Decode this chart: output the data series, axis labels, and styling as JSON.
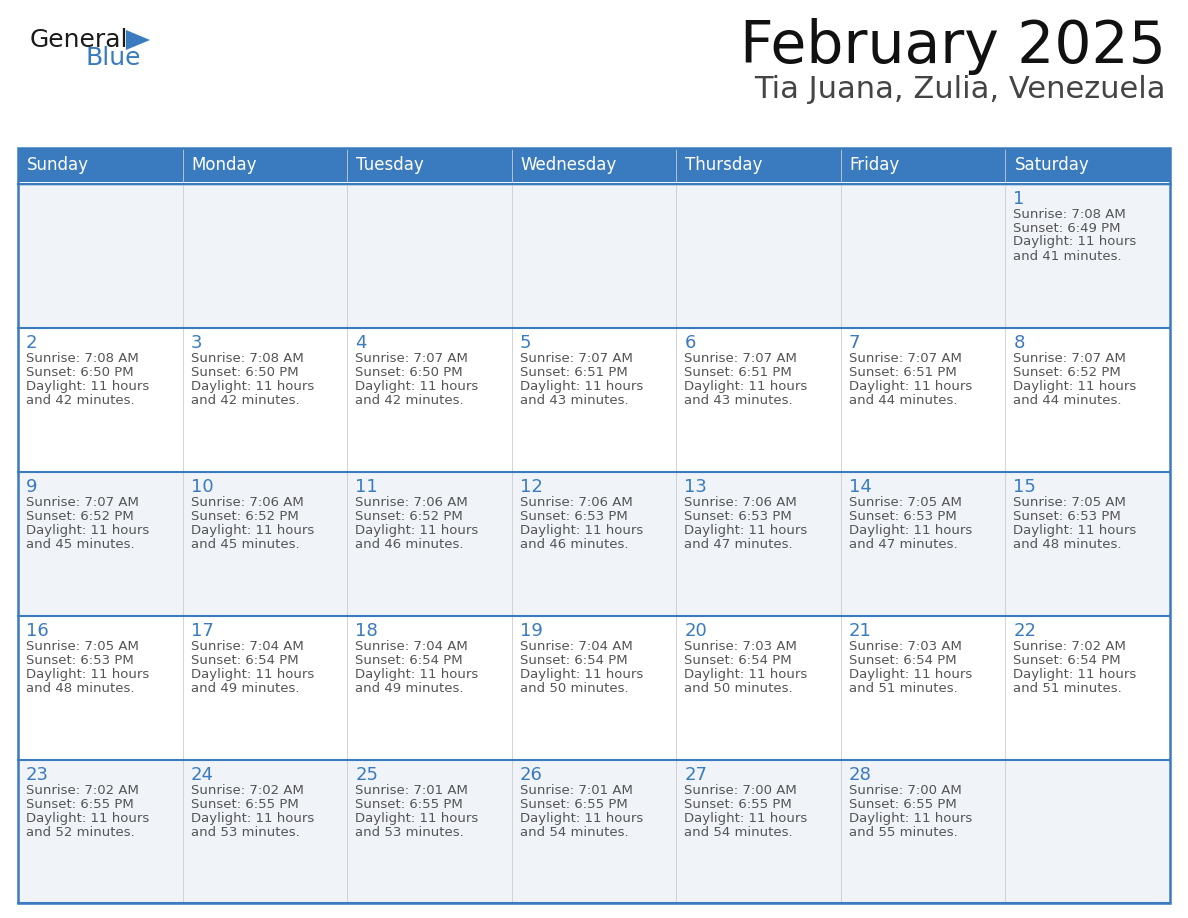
{
  "title": "February 2025",
  "subtitle": "Tia Juana, Zulia, Venezuela",
  "days_of_week": [
    "Sunday",
    "Monday",
    "Tuesday",
    "Wednesday",
    "Thursday",
    "Friday",
    "Saturday"
  ],
  "header_bg": "#3a7bbf",
  "header_text_color": "#ffffff",
  "cell_bg_odd": "#f0f4f8",
  "cell_bg_even": "#ffffff",
  "border_color_dark": "#3a7bbf",
  "border_color_light": "#a8c4e0",
  "text_color": "#555555",
  "day_number_color": "#3a7bbf",
  "calendar_data": [
    [
      null,
      null,
      null,
      null,
      null,
      null,
      {
        "day": 1,
        "sunrise": "7:08 AM",
        "sunset": "6:49 PM",
        "daylight": "11 hours and 41 minutes."
      }
    ],
    [
      {
        "day": 2,
        "sunrise": "7:08 AM",
        "sunset": "6:50 PM",
        "daylight": "11 hours and 42 minutes."
      },
      {
        "day": 3,
        "sunrise": "7:08 AM",
        "sunset": "6:50 PM",
        "daylight": "11 hours and 42 minutes."
      },
      {
        "day": 4,
        "sunrise": "7:07 AM",
        "sunset": "6:50 PM",
        "daylight": "11 hours and 42 minutes."
      },
      {
        "day": 5,
        "sunrise": "7:07 AM",
        "sunset": "6:51 PM",
        "daylight": "11 hours and 43 minutes."
      },
      {
        "day": 6,
        "sunrise": "7:07 AM",
        "sunset": "6:51 PM",
        "daylight": "11 hours and 43 minutes."
      },
      {
        "day": 7,
        "sunrise": "7:07 AM",
        "sunset": "6:51 PM",
        "daylight": "11 hours and 44 minutes."
      },
      {
        "day": 8,
        "sunrise": "7:07 AM",
        "sunset": "6:52 PM",
        "daylight": "11 hours and 44 minutes."
      }
    ],
    [
      {
        "day": 9,
        "sunrise": "7:07 AM",
        "sunset": "6:52 PM",
        "daylight": "11 hours and 45 minutes."
      },
      {
        "day": 10,
        "sunrise": "7:06 AM",
        "sunset": "6:52 PM",
        "daylight": "11 hours and 45 minutes."
      },
      {
        "day": 11,
        "sunrise": "7:06 AM",
        "sunset": "6:52 PM",
        "daylight": "11 hours and 46 minutes."
      },
      {
        "day": 12,
        "sunrise": "7:06 AM",
        "sunset": "6:53 PM",
        "daylight": "11 hours and 46 minutes."
      },
      {
        "day": 13,
        "sunrise": "7:06 AM",
        "sunset": "6:53 PM",
        "daylight": "11 hours and 47 minutes."
      },
      {
        "day": 14,
        "sunrise": "7:05 AM",
        "sunset": "6:53 PM",
        "daylight": "11 hours and 47 minutes."
      },
      {
        "day": 15,
        "sunrise": "7:05 AM",
        "sunset": "6:53 PM",
        "daylight": "11 hours and 48 minutes."
      }
    ],
    [
      {
        "day": 16,
        "sunrise": "7:05 AM",
        "sunset": "6:53 PM",
        "daylight": "11 hours and 48 minutes."
      },
      {
        "day": 17,
        "sunrise": "7:04 AM",
        "sunset": "6:54 PM",
        "daylight": "11 hours and 49 minutes."
      },
      {
        "day": 18,
        "sunrise": "7:04 AM",
        "sunset": "6:54 PM",
        "daylight": "11 hours and 49 minutes."
      },
      {
        "day": 19,
        "sunrise": "7:04 AM",
        "sunset": "6:54 PM",
        "daylight": "11 hours and 50 minutes."
      },
      {
        "day": 20,
        "sunrise": "7:03 AM",
        "sunset": "6:54 PM",
        "daylight": "11 hours and 50 minutes."
      },
      {
        "day": 21,
        "sunrise": "7:03 AM",
        "sunset": "6:54 PM",
        "daylight": "11 hours and 51 minutes."
      },
      {
        "day": 22,
        "sunrise": "7:02 AM",
        "sunset": "6:54 PM",
        "daylight": "11 hours and 51 minutes."
      }
    ],
    [
      {
        "day": 23,
        "sunrise": "7:02 AM",
        "sunset": "6:55 PM",
        "daylight": "11 hours and 52 minutes."
      },
      {
        "day": 24,
        "sunrise": "7:02 AM",
        "sunset": "6:55 PM",
        "daylight": "11 hours and 53 minutes."
      },
      {
        "day": 25,
        "sunrise": "7:01 AM",
        "sunset": "6:55 PM",
        "daylight": "11 hours and 53 minutes."
      },
      {
        "day": 26,
        "sunrise": "7:01 AM",
        "sunset": "6:55 PM",
        "daylight": "11 hours and 54 minutes."
      },
      {
        "day": 27,
        "sunrise": "7:00 AM",
        "sunset": "6:55 PM",
        "daylight": "11 hours and 54 minutes."
      },
      {
        "day": 28,
        "sunrise": "7:00 AM",
        "sunset": "6:55 PM",
        "daylight": "11 hours and 55 minutes."
      },
      null
    ]
  ],
  "logo_text_general": "General",
  "logo_text_blue": "Blue",
  "logo_color_general": "#1a1a1a",
  "logo_color_blue": "#3a7bbf",
  "logo_triangle_color": "#3a7bbf",
  "title_fontsize": 42,
  "subtitle_fontsize": 22,
  "header_fontsize": 12,
  "day_num_fontsize": 13,
  "cell_text_fontsize": 9.5
}
